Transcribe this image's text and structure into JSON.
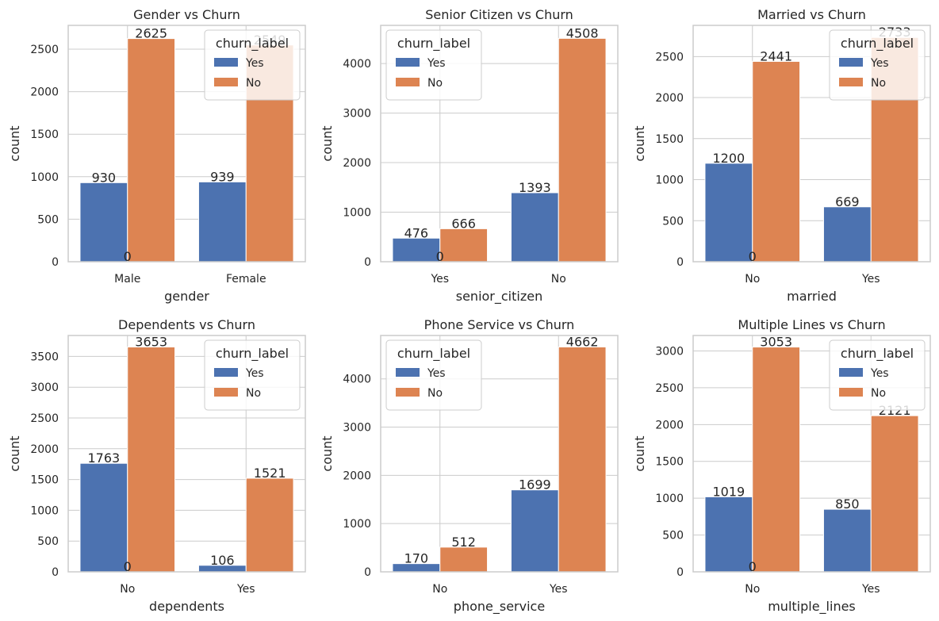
{
  "colors": {
    "yes": "#4c72b0",
    "no": "#dd8452",
    "grid": "#cccccc",
    "spine": "#cccccc",
    "text": "#262626"
  },
  "legend_title": "churn_label",
  "legend_labels": [
    "Yes",
    "No"
  ],
  "chart_data": [
    {
      "type": "bar",
      "title": "Gender vs Churn",
      "xlabel": "gender",
      "ylabel": "count",
      "categories": [
        "Male",
        "Female"
      ],
      "ylim": [
        0,
        2780
      ],
      "yticks": [
        0,
        500,
        1000,
        1500,
        2000,
        2500
      ],
      "grid": true,
      "legend": "top-right",
      "series": [
        {
          "name": "Yes",
          "values": [
            930,
            939
          ]
        },
        {
          "name": "No",
          "values": [
            2625,
            2549
          ]
        }
      ],
      "bar_labels": [
        "930",
        "939",
        "2625",
        "2549",
        "0"
      ]
    },
    {
      "type": "bar",
      "title": "Senior Citizen vs Churn",
      "xlabel": "senior_citizen",
      "ylabel": "count",
      "categories": [
        "Yes",
        "No"
      ],
      "ylim": [
        0,
        4770
      ],
      "yticks": [
        0,
        1000,
        2000,
        3000,
        4000
      ],
      "grid": true,
      "legend": "top-left",
      "series": [
        {
          "name": "Yes",
          "values": [
            476,
            1393
          ]
        },
        {
          "name": "No",
          "values": [
            666,
            4508
          ]
        }
      ],
      "bar_labels": [
        "476",
        "1393",
        "666",
        "4508",
        "0"
      ]
    },
    {
      "type": "bar",
      "title": "Married vs Churn",
      "xlabel": "married",
      "ylabel": "count",
      "categories": [
        "No",
        "Yes"
      ],
      "ylim": [
        0,
        2880
      ],
      "yticks": [
        0,
        500,
        1000,
        1500,
        2000,
        2500
      ],
      "grid": true,
      "legend": "top-right",
      "series": [
        {
          "name": "Yes",
          "values": [
            1200,
            669
          ]
        },
        {
          "name": "No",
          "values": [
            2441,
            2733
          ]
        }
      ],
      "bar_labels": [
        "1200",
        "669",
        "2441",
        "2733",
        "0"
      ]
    },
    {
      "type": "bar",
      "title": "Dependents vs Churn",
      "xlabel": "dependents",
      "ylabel": "count",
      "categories": [
        "No",
        "Yes"
      ],
      "ylim": [
        0,
        3840
      ],
      "yticks": [
        0,
        500,
        1000,
        1500,
        2000,
        2500,
        3000,
        3500
      ],
      "grid": true,
      "legend": "top-right",
      "series": [
        {
          "name": "Yes",
          "values": [
            1763,
            106
          ]
        },
        {
          "name": "No",
          "values": [
            3653,
            1521
          ]
        }
      ],
      "bar_labels": [
        "1763",
        "106",
        "3653",
        "1521",
        "0"
      ]
    },
    {
      "type": "bar",
      "title": "Phone Service vs Churn",
      "xlabel": "phone_service",
      "ylabel": "count",
      "categories": [
        "No",
        "Yes"
      ],
      "ylim": [
        0,
        4900
      ],
      "yticks": [
        0,
        1000,
        2000,
        3000,
        4000
      ],
      "grid": true,
      "legend": "top-left",
      "series": [
        {
          "name": "Yes",
          "values": [
            170,
            1699
          ]
        },
        {
          "name": "No",
          "values": [
            512,
            4662
          ]
        }
      ],
      "bar_labels": [
        "170",
        "1699",
        "512",
        "4662"
      ]
    },
    {
      "type": "bar",
      "title": "Multiple Lines vs Churn",
      "xlabel": "multiple_lines",
      "ylabel": "count",
      "categories": [
        "No",
        "Yes"
      ],
      "ylim": [
        0,
        3210
      ],
      "yticks": [
        0,
        500,
        1000,
        1500,
        2000,
        2500,
        3000
      ],
      "grid": true,
      "legend": "top-right",
      "series": [
        {
          "name": "Yes",
          "values": [
            1019,
            850
          ]
        },
        {
          "name": "No",
          "values": [
            3053,
            2121
          ]
        }
      ],
      "bar_labels": [
        "1019",
        "850",
        "3053",
        "2121",
        "0"
      ]
    }
  ]
}
